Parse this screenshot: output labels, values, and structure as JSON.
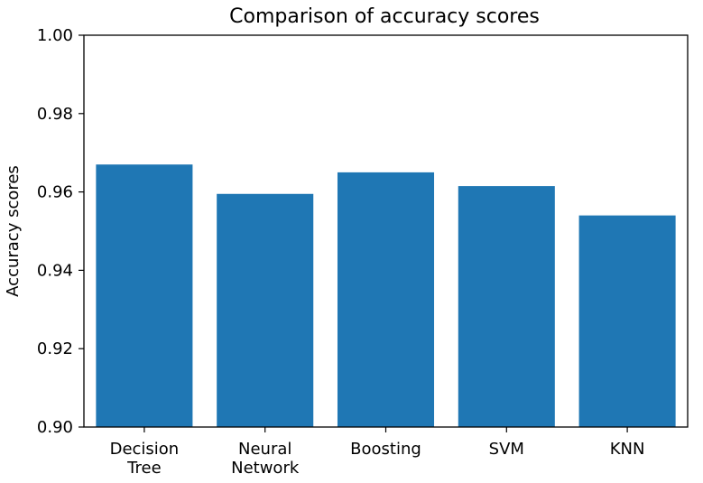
{
  "chart_data": {
    "type": "bar",
    "title": "Comparison of accuracy scores",
    "xlabel": "",
    "ylabel": "Accuracy scores",
    "categories": [
      [
        "Decision",
        "Tree"
      ],
      [
        "Neural",
        "Network"
      ],
      [
        "Boosting"
      ],
      [
        "SVM"
      ],
      [
        "KNN"
      ]
    ],
    "values": [
      0.967,
      0.9595,
      0.965,
      0.9615,
      0.954
    ],
    "ylim": [
      0.9,
      1.0
    ],
    "yticks": [
      "0.90",
      "0.92",
      "0.94",
      "0.96",
      "0.98",
      "1.00"
    ],
    "bar_color": "#1f77b4",
    "grid": false,
    "legend": "none"
  }
}
